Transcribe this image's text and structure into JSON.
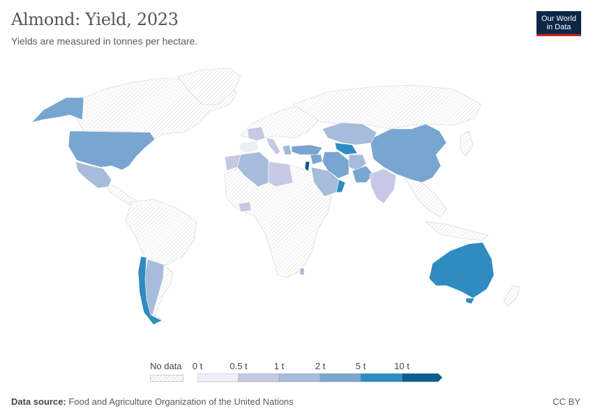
{
  "header": {
    "title": "Almond: Yield, 2023",
    "subtitle": "Yields are measured in tonnes per hectare."
  },
  "logo": {
    "line1": "Our World",
    "line2": "in Data"
  },
  "legend": {
    "nodata_label": "No data",
    "bins": [
      {
        "label": "0 t",
        "color": "#eeeef6"
      },
      {
        "label": "0.5 t",
        "color": "#c6c9e3"
      },
      {
        "label": "1 t",
        "color": "#a7bbdb"
      },
      {
        "label": "2 t",
        "color": "#78a6d0"
      },
      {
        "label": "5 t",
        "color": "#2e8cc0"
      },
      {
        "label": "10 t",
        "color": "#0b5e8d"
      }
    ]
  },
  "map_data": {
    "unit": "tonnes per hectare",
    "year": 2023,
    "regions": [
      {
        "name": "Alaska",
        "bin": 3
      },
      {
        "name": "United States",
        "bin": 3
      },
      {
        "name": "Mexico",
        "bin": 2
      },
      {
        "name": "Chile",
        "bin": 4
      },
      {
        "name": "Argentina",
        "bin": 2
      },
      {
        "name": "Australia",
        "bin": 4
      },
      {
        "name": "China",
        "bin": 3
      },
      {
        "name": "Kazakhstan",
        "bin": 2
      },
      {
        "name": "Iran",
        "bin": 3
      },
      {
        "name": "Afghanistan",
        "bin": 2
      },
      {
        "name": "Pakistan",
        "bin": 3
      },
      {
        "name": "Uzbekistan",
        "bin": 4
      },
      {
        "name": "Turkey",
        "bin": 3
      },
      {
        "name": "Syria",
        "bin": 3
      },
      {
        "name": "Israel",
        "bin": 5
      },
      {
        "name": "Saudi Arabia",
        "bin": 2
      },
      {
        "name": "Oman",
        "bin": 4
      },
      {
        "name": "Algeria",
        "bin": 2
      },
      {
        "name": "Libya",
        "bin": 1
      },
      {
        "name": "Morocco",
        "bin": 1
      },
      {
        "name": "Spain",
        "bin": 0
      },
      {
        "name": "Italy",
        "bin": 1
      },
      {
        "name": "Greece",
        "bin": 2
      },
      {
        "name": "France",
        "bin": 1
      },
      {
        "name": "India",
        "bin": 1
      },
      {
        "name": "Burkina Faso",
        "bin": 1
      },
      {
        "name": "Malawi",
        "bin": 2
      }
    ]
  },
  "footer": {
    "source_label": "Data source:",
    "source_text": " Food and Agriculture Organization of the United Nations",
    "license": "CC BY"
  }
}
